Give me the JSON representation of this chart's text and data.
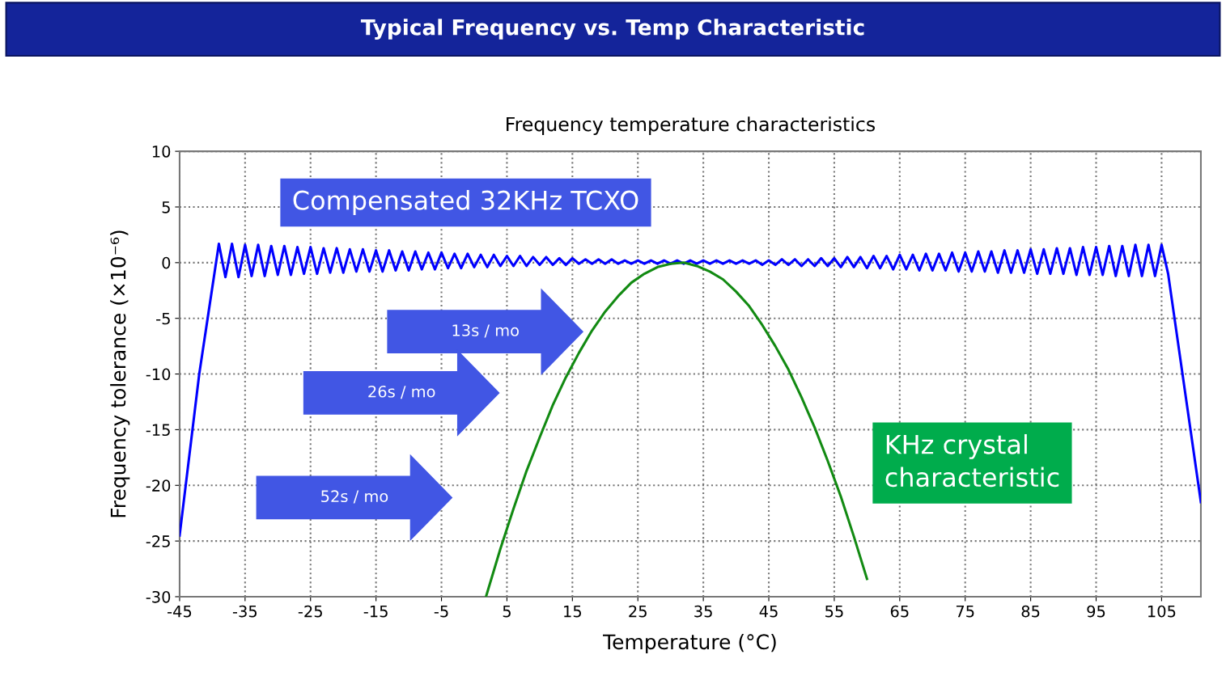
{
  "chart_data": {
    "type": "line",
    "title": "Typical Frequency vs. Temp Characteristic",
    "subtitle": "Frequency temperature characteristics",
    "xlabel": "Temperature (°C)",
    "ylabel": "Frequency tolerance (×10⁻⁶)",
    "xlim": [
      -45,
      111
    ],
    "xticks": [
      -45,
      -35,
      -25,
      -15,
      -5,
      5,
      15,
      25,
      35,
      45,
      55,
      65,
      75,
      85,
      95,
      105
    ],
    "ylim": [
      -30,
      10
    ],
    "yticks": [
      -30,
      -25,
      -20,
      -15,
      -10,
      -5,
      0,
      5,
      10
    ],
    "grid": true,
    "line_style": "solid",
    "series": [
      {
        "name": "Compensated 32KHz TCXO",
        "color": "#0000ff",
        "x": [
          -45,
          -42,
          -39,
          -38,
          -37,
          -36,
          -35,
          -34,
          -33,
          -32,
          -31,
          -30,
          -29,
          -28,
          -27,
          -26,
          -25,
          -24,
          -23,
          -22,
          -21,
          -20,
          -19,
          -18,
          -17,
          -16,
          -15,
          -14,
          -13,
          -12,
          -11,
          -10,
          -9,
          -8,
          -7,
          -6,
          -5,
          -4,
          -3,
          -2,
          -1,
          0,
          1,
          2,
          3,
          4,
          5,
          6,
          7,
          8,
          9,
          10,
          11,
          12,
          13,
          14,
          15,
          16,
          17,
          18,
          19,
          20,
          21,
          22,
          23,
          24,
          25,
          26,
          27,
          28,
          29,
          30,
          31,
          32,
          33,
          34,
          35,
          36,
          37,
          38,
          39,
          40,
          41,
          42,
          43,
          44,
          45,
          46,
          47,
          48,
          49,
          50,
          51,
          52,
          53,
          54,
          55,
          56,
          57,
          58,
          59,
          60,
          61,
          62,
          63,
          64,
          65,
          66,
          67,
          68,
          69,
          70,
          71,
          72,
          73,
          74,
          75,
          76,
          77,
          78,
          79,
          80,
          81,
          82,
          83,
          84,
          85,
          86,
          87,
          88,
          89,
          90,
          91,
          92,
          93,
          94,
          95,
          96,
          97,
          98,
          99,
          100,
          101,
          102,
          103,
          104,
          105,
          106,
          111
        ],
        "values": [
          -24.5,
          -10.0,
          1.7,
          -1.3,
          1.7,
          -1.3,
          1.6,
          -1.2,
          1.6,
          -1.2,
          1.5,
          -1.1,
          1.5,
          -1.1,
          1.4,
          -1.0,
          1.4,
          -1.0,
          1.3,
          -0.9,
          1.3,
          -0.9,
          1.2,
          -0.8,
          1.2,
          -0.8,
          1.1,
          -0.8,
          1.1,
          -0.7,
          1.0,
          -0.7,
          1.0,
          -0.6,
          0.9,
          -0.6,
          0.9,
          -0.5,
          0.8,
          -0.5,
          0.8,
          -0.4,
          0.7,
          -0.4,
          0.7,
          -0.3,
          0.6,
          -0.3,
          0.6,
          -0.3,
          0.5,
          -0.2,
          0.5,
          -0.2,
          0.4,
          -0.2,
          0.4,
          -0.1,
          0.3,
          -0.1,
          0.3,
          -0.1,
          0.3,
          -0.1,
          0.2,
          -0.1,
          0.2,
          -0.1,
          0.2,
          -0.1,
          0.2,
          -0.1,
          0.2,
          -0.1,
          0.2,
          -0.1,
          0.2,
          -0.1,
          0.2,
          -0.1,
          0.2,
          -0.1,
          0.2,
          -0.1,
          0.2,
          -0.2,
          0.2,
          -0.2,
          0.3,
          -0.2,
          0.3,
          -0.3,
          0.3,
          -0.3,
          0.4,
          -0.3,
          0.4,
          -0.4,
          0.5,
          -0.4,
          0.5,
          -0.5,
          0.6,
          -0.5,
          0.6,
          -0.6,
          0.7,
          -0.6,
          0.7,
          -0.7,
          0.8,
          -0.7,
          0.8,
          -0.7,
          0.9,
          -0.8,
          0.9,
          -0.8,
          1.0,
          -0.8,
          1.0,
          -0.9,
          1.1,
          -0.9,
          1.1,
          -0.9,
          1.2,
          -1.0,
          1.2,
          -1.0,
          1.3,
          -1.0,
          1.3,
          -1.1,
          1.4,
          -1.1,
          1.4,
          -1.1,
          1.5,
          -1.2,
          1.5,
          -1.2,
          1.6,
          -1.2,
          1.6,
          -1.2,
          1.6,
          -1.0,
          -21.5
        ]
      },
      {
        "name": "KHz crystal\ncharacteristic",
        "color": "#128a12",
        "x": [
          1.8,
          4,
          6,
          8,
          10,
          12,
          14,
          16,
          18,
          20,
          22,
          24,
          26,
          28,
          30,
          32,
          34,
          36,
          38,
          40,
          42,
          44,
          46,
          48,
          50,
          52,
          54,
          56,
          58,
          60
        ],
        "values": [
          -30.0,
          -25.7,
          -22.1,
          -18.7,
          -15.7,
          -12.8,
          -10.3,
          -8.1,
          -6.1,
          -4.4,
          -3.0,
          -1.8,
          -1.0,
          -0.4,
          -0.1,
          0.0,
          -0.3,
          -0.8,
          -1.5,
          -2.6,
          -3.9,
          -5.6,
          -7.5,
          -9.6,
          -12.1,
          -14.8,
          -17.8,
          -21.0,
          -24.6,
          -28.4
        ]
      }
    ],
    "annotations": [
      "13s / mo",
      "26s / mo",
      "52s / mo"
    ]
  }
}
